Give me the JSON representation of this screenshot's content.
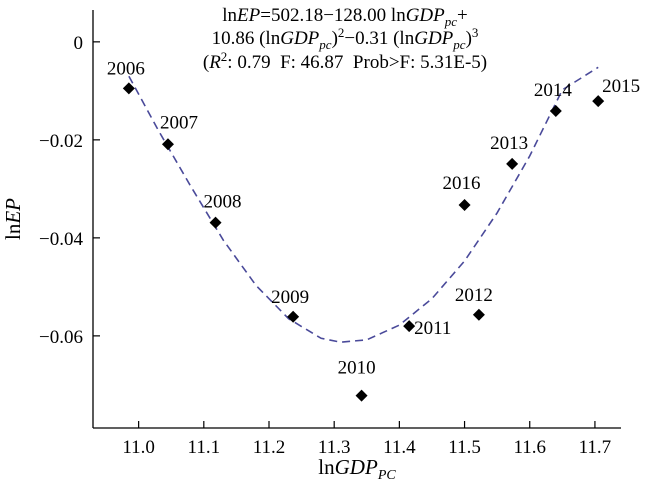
{
  "chart_data": {
    "type": "scatter",
    "equation": {
      "line1": "lnEP=502.18−128.00 lnGDPpc+",
      "line2": "10.86 (lnGDPpc)²−0.31 (lnGDPpc)³",
      "line3": "(R²: 0.79  F: 46.87  Prob>F: 5.31E-5)"
    },
    "xlabel": "lnGDPPC",
    "ylabel": "lnEP",
    "xlim": [
      10.93,
      11.74
    ],
    "ylim": [
      -0.0788,
      0.0065
    ],
    "x_ticks": [
      "11.0",
      "11.1",
      "11.2",
      "11.3",
      "11.4",
      "11.5",
      "11.6",
      "11.7"
    ],
    "x_tick_values": [
      11.0,
      11.1,
      11.2,
      11.3,
      11.4,
      11.5,
      11.6,
      11.7
    ],
    "y_ticks": [
      "0",
      "−0.02",
      "−0.04",
      "−0.06"
    ],
    "y_tick_values": [
      0,
      -0.02,
      -0.04,
      -0.06
    ],
    "points": [
      {
        "label": "2006",
        "x": 10.985,
        "y": -0.0095
      },
      {
        "label": "2007",
        "x": 11.045,
        "y": -0.0209
      },
      {
        "label": "2008",
        "x": 11.118,
        "y": -0.0369
      },
      {
        "label": "2009",
        "x": 11.237,
        "y": -0.0561
      },
      {
        "label": "2010",
        "x": 11.342,
        "y": -0.0722
      },
      {
        "label": "2011",
        "x": 11.415,
        "y": -0.058
      },
      {
        "label": "2012",
        "x": 11.522,
        "y": -0.0557
      },
      {
        "label": "2013",
        "x": 11.573,
        "y": -0.0249
      },
      {
        "label": "2014",
        "x": 11.64,
        "y": -0.0141
      },
      {
        "label": "2015",
        "x": 11.705,
        "y": -0.0121
      },
      {
        "label": "2016",
        "x": 11.5,
        "y": -0.0333
      }
    ],
    "fit_curve": {
      "style": "dashed",
      "color": "#4a4a9a",
      "x": [
        10.985,
        11.03,
        11.08,
        11.13,
        11.18,
        11.23,
        11.28,
        11.31,
        11.35,
        11.4,
        11.45,
        11.5,
        11.55,
        11.6,
        11.65,
        11.705
      ],
      "y": [
        -0.007,
        -0.018,
        -0.0295,
        -0.0405,
        -0.0497,
        -0.0565,
        -0.0605,
        -0.0613,
        -0.0608,
        -0.0578,
        -0.0524,
        -0.0447,
        -0.0349,
        -0.0233,
        -0.0098,
        -0.0052
      ]
    },
    "grid": false,
    "legend": "none",
    "marker_color": "#000000"
  }
}
